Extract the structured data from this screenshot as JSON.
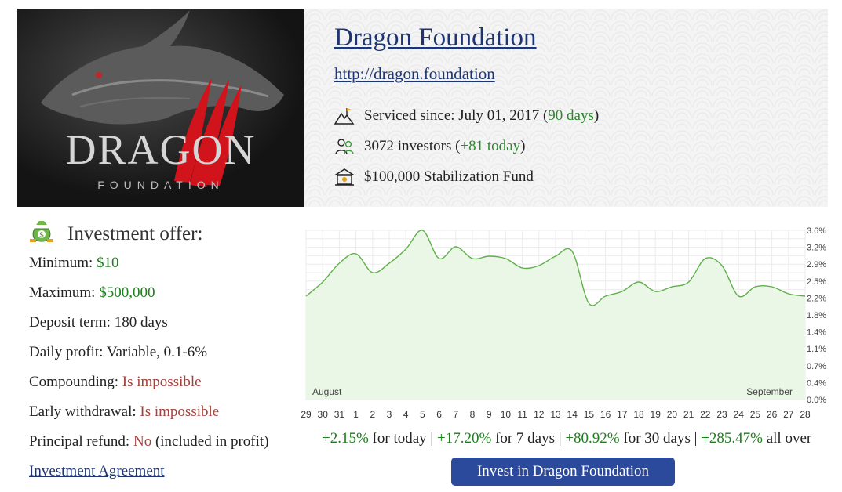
{
  "logo": {
    "word": "DRAGON",
    "sub": "FOUNDATION"
  },
  "header": {
    "title": "Dragon Foundation",
    "url": "http://dragon.foundation",
    "serviced_label": "Serviced since: July 01, 2017 (",
    "serviced_days": "90 days",
    "serviced_close": ")",
    "investors_label": "3072 investors (",
    "investors_today": "+81 today",
    "investors_close": ")",
    "fund": "$100,000 Stabilization Fund"
  },
  "offer": {
    "title": "Investment offer:",
    "minimum_label": "Minimum:",
    "minimum_value": "$10",
    "maximum_label": "Maximum:",
    "maximum_value": "$500,000",
    "term": "Deposit term: 180 days",
    "daily": "Daily profit: Variable, 0.1-6%",
    "compounding_label": "Compounding:",
    "compounding_value": "Is impossible",
    "early_label": "Early withdrawal:",
    "early_value": "Is impossible",
    "refund_label": "Principal refund:",
    "refund_value": "No",
    "refund_note": "(included in profit)",
    "agreement": "Investment Agreement"
  },
  "stats": {
    "today_value": "+2.15%",
    "today_label": "for today",
    "week_value": "+17.20%",
    "week_label": "for 7 days",
    "month_value": "+80.92%",
    "month_label": "for 30 days",
    "all_value": "+285.47%",
    "all_label": "all over",
    "sep": "|"
  },
  "invest_button": "Invest in Dragon Foundation",
  "colors": {
    "accent": "#2c4a9b",
    "link": "#1d3570",
    "positive": "#2a8a2a",
    "negative": "#a5403a",
    "line": "#5fb04a",
    "fill": "#eaf6e6"
  },
  "icons": [
    "mountain-flag-icon",
    "investors-icon",
    "bank-icon",
    "money-bag-icon"
  ],
  "chart_data": {
    "type": "area",
    "x": [
      "29",
      "30",
      "31",
      "1",
      "2",
      "3",
      "4",
      "5",
      "6",
      "7",
      "8",
      "9",
      "10",
      "11",
      "12",
      "13",
      "14",
      "15",
      "16",
      "17",
      "18",
      "19",
      "20",
      "21",
      "22",
      "23",
      "24",
      "25",
      "26",
      "27",
      "28"
    ],
    "values": [
      2.2,
      2.5,
      2.9,
      3.1,
      2.7,
      2.9,
      3.2,
      3.6,
      3.0,
      3.25,
      3.0,
      3.05,
      3.0,
      2.8,
      2.85,
      3.05,
      3.15,
      2.05,
      2.2,
      2.3,
      2.5,
      2.3,
      2.4,
      2.5,
      3.0,
      2.85,
      2.2,
      2.4,
      2.4,
      2.25,
      2.2
    ],
    "y_ticks": [
      "0.0%",
      "0.4%",
      "0.7%",
      "1.1%",
      "1.4%",
      "1.8%",
      "2.2%",
      "2.5%",
      "2.9%",
      "3.2%",
      "3.6%"
    ],
    "ylim": [
      0,
      3.6
    ],
    "month_labels": [
      "August",
      "September"
    ],
    "grid": true
  }
}
